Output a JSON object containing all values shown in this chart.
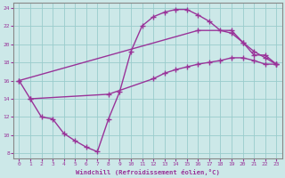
{
  "xlabel": "Windchill (Refroidissement éolien,°C)",
  "bg_color": "#cce8e8",
  "line_color": "#993399",
  "marker": "+",
  "markersize": 4,
  "linewidth": 1.0,
  "xlim": [
    -0.5,
    23.5
  ],
  "ylim": [
    7.5,
    24.5
  ],
  "xticks": [
    0,
    1,
    2,
    3,
    4,
    5,
    6,
    7,
    8,
    9,
    10,
    11,
    12,
    13,
    14,
    15,
    16,
    17,
    18,
    19,
    20,
    21,
    22,
    23
  ],
  "yticks": [
    8,
    10,
    12,
    14,
    16,
    18,
    20,
    22,
    24
  ],
  "grid_color": "#99cccc",
  "series1_x": [
    0,
    1,
    2,
    3,
    4,
    5,
    6,
    7,
    8,
    9,
    10,
    11,
    12,
    13,
    14,
    15,
    16,
    17,
    18,
    19,
    20,
    21,
    22,
    23
  ],
  "series1_y": [
    16,
    14,
    12,
    11.8,
    10.2,
    9.4,
    8.7,
    8.2,
    11.8,
    14.8,
    19.2,
    22.0,
    23.0,
    23.5,
    23.8,
    23.8,
    23.2,
    22.5,
    21.5,
    21.2,
    20.2,
    18.8,
    18.8,
    17.8
  ],
  "series2_x": [
    0,
    16,
    19,
    20,
    21,
    22,
    23
  ],
  "series2_y": [
    16,
    21.5,
    21.5,
    20.2,
    19.2,
    18.5,
    17.8
  ],
  "series3_x": [
    1,
    8,
    12,
    13,
    14,
    15,
    16,
    17,
    18,
    19,
    20,
    21,
    22,
    23
  ],
  "series3_y": [
    14,
    14.5,
    16.2,
    16.8,
    17.2,
    17.5,
    17.8,
    18.0,
    18.2,
    18.5,
    18.5,
    18.2,
    17.8,
    17.8
  ]
}
